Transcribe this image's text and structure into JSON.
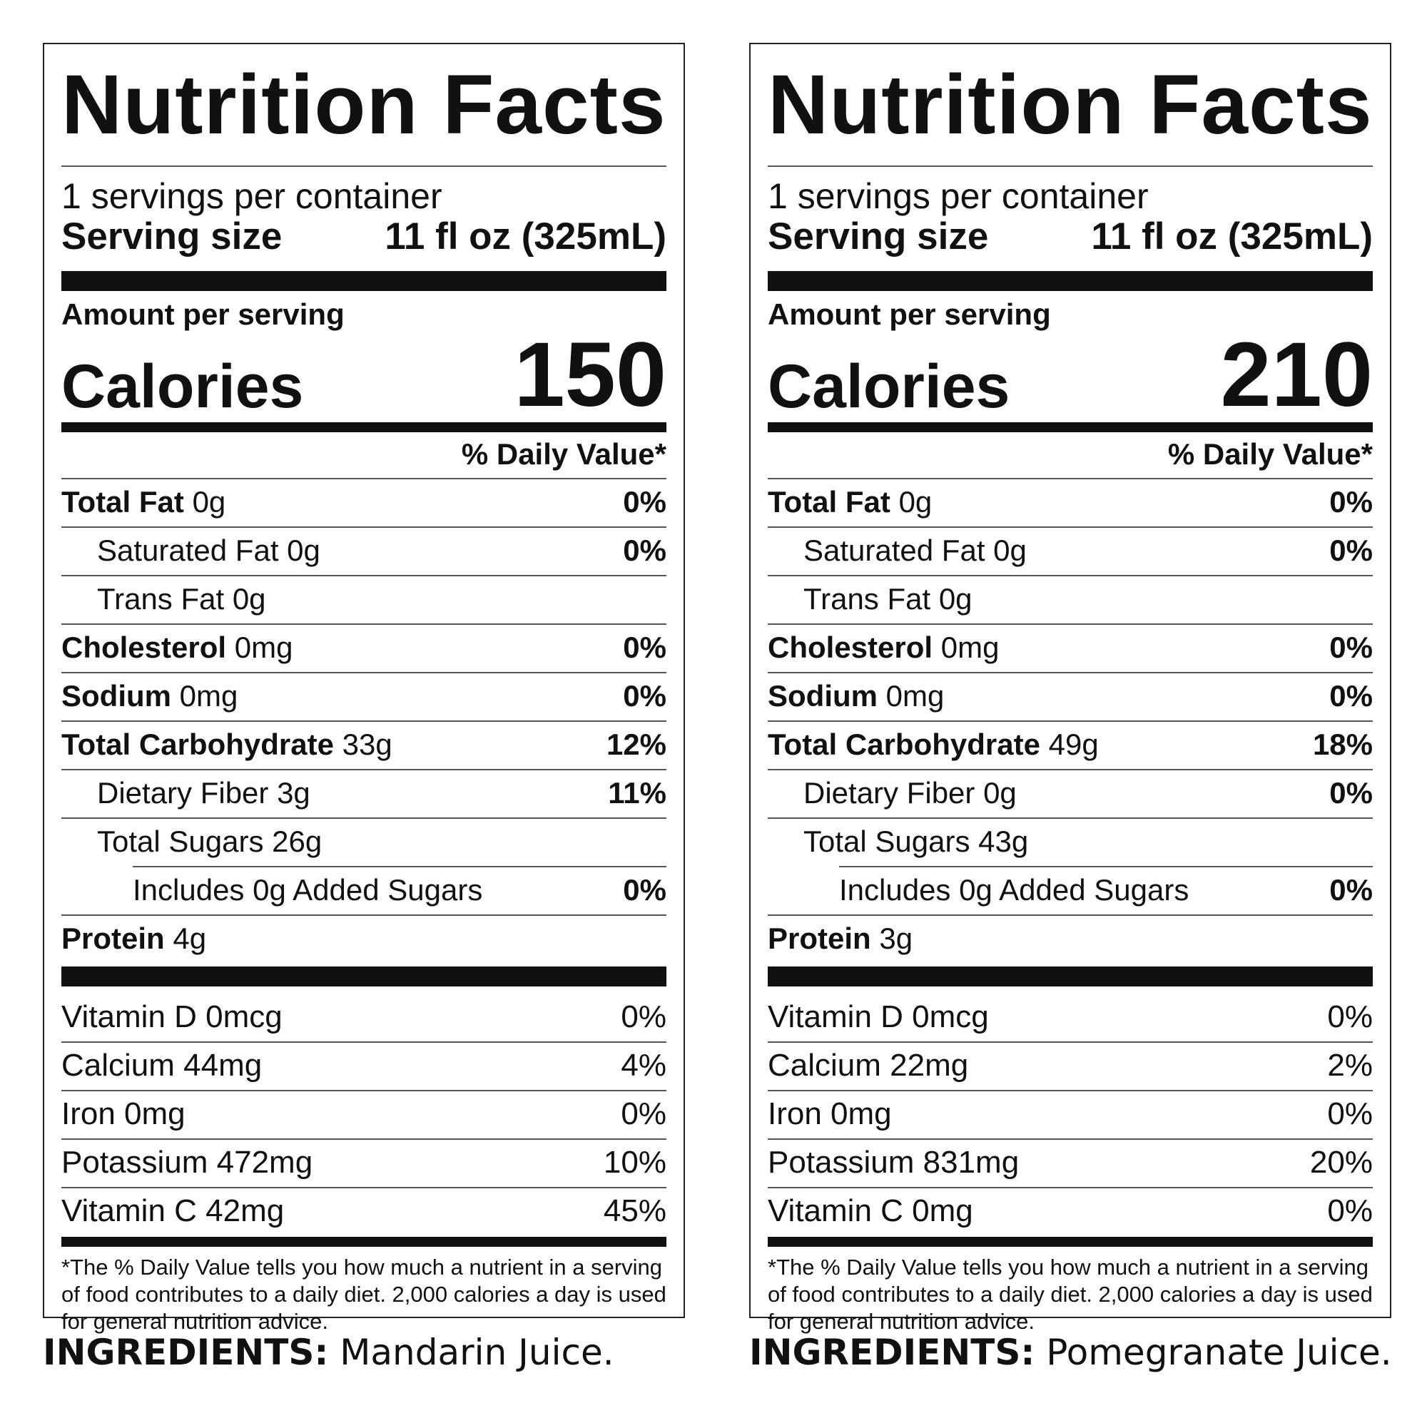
{
  "labels": [
    {
      "title": "Nutrition Facts",
      "servings_per_container": "1 servings per container",
      "serving_size_label": "Serving size",
      "serving_size_value": "11 fl oz (325mL)",
      "amount_per_serving": "Amount per serving",
      "calories_label": "Calories",
      "calories_value": "150",
      "daily_value_header": "% Daily Value*",
      "nutrients": [
        {
          "name": "Total Fat",
          "amount": "0g",
          "dv": "0%"
        },
        {
          "name": "Saturated Fat",
          "amount": "0g",
          "dv": "0%"
        },
        {
          "name": "Trans Fat",
          "amount": "0g",
          "dv": ""
        },
        {
          "name": "Cholesterol",
          "amount": "0mg",
          "dv": "0%"
        },
        {
          "name": "Sodium",
          "amount": "0mg",
          "dv": "0%"
        },
        {
          "name": "Total Carbohydrate",
          "amount": "33g",
          "dv": "12%"
        },
        {
          "name": "Dietary Fiber",
          "amount": "3g",
          "dv": "11%"
        },
        {
          "name": "Total Sugars",
          "amount": "26g",
          "dv": ""
        },
        {
          "name": "Includes 0g Added Sugars",
          "amount": "",
          "dv": "0%"
        },
        {
          "name": "Protein",
          "amount": "4g",
          "dv": ""
        }
      ],
      "vitamins": [
        {
          "text": "Vitamin D 0mcg",
          "dv": "0%"
        },
        {
          "text": "Calcium 44mg",
          "dv": "4%"
        },
        {
          "text": "Iron 0mg",
          "dv": "0%"
        },
        {
          "text": "Potassium 472mg",
          "dv": "10%"
        },
        {
          "text": "Vitamin C 42mg",
          "dv": "45%"
        }
      ],
      "footnote": "*The % Daily Value tells you how much a nutrient in a serving of food contributes to a daily diet. 2,000 calories a day is used for general nutrition advice.",
      "ingredients_label": "INGREDIENTS:",
      "ingredients_text": " Mandarin Juice."
    },
    {
      "title": "Nutrition Facts",
      "servings_per_container": "1 servings per container",
      "serving_size_label": "Serving size",
      "serving_size_value": "11 fl oz (325mL)",
      "amount_per_serving": "Amount per serving",
      "calories_label": "Calories",
      "calories_value": "210",
      "daily_value_header": "% Daily Value*",
      "nutrients": [
        {
          "name": "Total Fat",
          "amount": "0g",
          "dv": "0%"
        },
        {
          "name": "Saturated Fat",
          "amount": "0g",
          "dv": "0%"
        },
        {
          "name": "Trans Fat",
          "amount": "0g",
          "dv": ""
        },
        {
          "name": "Cholesterol",
          "amount": "0mg",
          "dv": "0%"
        },
        {
          "name": "Sodium",
          "amount": "0mg",
          "dv": "0%"
        },
        {
          "name": "Total Carbohydrate",
          "amount": "49g",
          "dv": "18%"
        },
        {
          "name": "Dietary Fiber",
          "amount": "0g",
          "dv": "0%"
        },
        {
          "name": "Total Sugars",
          "amount": "43g",
          "dv": ""
        },
        {
          "name": "Includes 0g Added Sugars",
          "amount": "",
          "dv": "0%"
        },
        {
          "name": "Protein",
          "amount": "3g",
          "dv": ""
        }
      ],
      "vitamins": [
        {
          "text": "Vitamin D 0mcg",
          "dv": "0%"
        },
        {
          "text": "Calcium 22mg",
          "dv": "2%"
        },
        {
          "text": "Iron 0mg",
          "dv": "0%"
        },
        {
          "text": "Potassium 831mg",
          "dv": "20%"
        },
        {
          "text": "Vitamin C 0mg",
          "dv": "0%"
        }
      ],
      "footnote": "*The % Daily Value tells you how much a nutrient in a serving of food contributes to a daily diet. 2,000 calories a day is used for general nutrition advice.",
      "ingredients_label": "INGREDIENTS:",
      "ingredients_text": " Pomegranate Juice."
    }
  ]
}
